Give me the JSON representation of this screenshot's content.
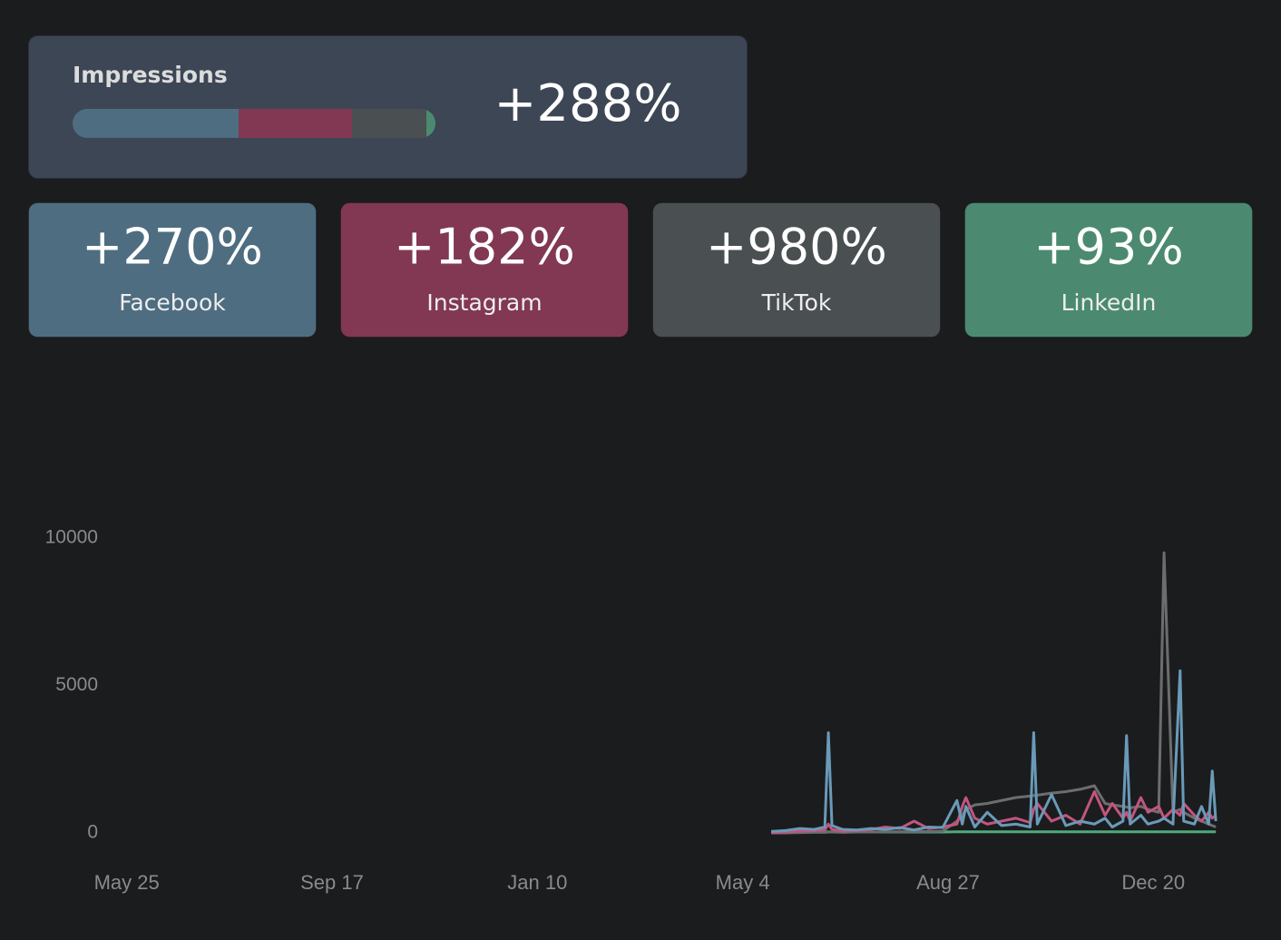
{
  "summary": {
    "title": "Impressions",
    "value": "+288%"
  },
  "cards": [
    {
      "value": "+270%",
      "label": "Facebook",
      "color": "#4e6d80",
      "share": 45.75
    },
    {
      "value": "+182%",
      "label": "Instagram",
      "color": "#823852",
      "share": 31.25
    },
    {
      "value": "+980%",
      "label": "TikTok",
      "color": "#4a4f52",
      "share": 20.5
    },
    {
      "value": "+93%",
      "label": "LinkedIn",
      "color": "#4b8a70",
      "share": 2.5
    }
  ],
  "chart_data": {
    "type": "line",
    "x": [
      361,
      369,
      377,
      385,
      391,
      393,
      395,
      401,
      409,
      417,
      425,
      433,
      441,
      449,
      457,
      465,
      468,
      470,
      475,
      482,
      490,
      498,
      506,
      508,
      510,
      518,
      526,
      534,
      542,
      548,
      552,
      558,
      560,
      562,
      568,
      572,
      578,
      581,
      586,
      590,
      592,
      598,
      602,
      606,
      608,
      610
    ],
    "series": [
      {
        "color": "#4fa97e",
        "values": [
          50,
          40,
          40,
          30,
          30,
          40,
          30,
          30,
          30,
          30,
          30,
          30,
          30,
          30,
          30,
          40,
          40,
          40,
          40,
          40,
          40,
          40,
          40,
          40,
          40,
          40,
          40,
          40,
          40,
          40,
          40,
          40,
          40,
          40,
          40,
          40,
          40,
          40,
          40,
          40,
          40,
          40,
          40,
          40,
          40,
          40
        ]
      },
      {
        "color": "#6b6d6f",
        "values": [
          0,
          0,
          10,
          20,
          20,
          30,
          30,
          20,
          30,
          30,
          40,
          40,
          50,
          50,
          60,
          400,
          600,
          800,
          950,
          1000,
          1100,
          1200,
          1250,
          1270,
          1280,
          1350,
          1400,
          1480,
          1600,
          1000,
          950,
          900,
          880,
          850,
          900,
          800,
          700,
          9500,
          700,
          800,
          700,
          500,
          400,
          300,
          250,
          200
        ]
      },
      {
        "color": "#c2557f",
        "values": [
          0,
          30,
          60,
          80,
          100,
          300,
          120,
          60,
          80,
          120,
          200,
          150,
          400,
          150,
          200,
          300,
          900,
          1200,
          500,
          300,
          400,
          500,
          350,
          800,
          1000,
          400,
          600,
          300,
          1400,
          600,
          1000,
          500,
          700,
          400,
          1200,
          700,
          900,
          500,
          800,
          600,
          1000,
          600,
          400,
          700,
          500,
          600
        ]
      },
      {
        "color": "#6a9ab8",
        "values": [
          50,
          80,
          150,
          120,
          200,
          3400,
          250,
          120,
          100,
          150,
          120,
          180,
          100,
          200,
          180,
          1100,
          300,
          900,
          200,
          700,
          250,
          300,
          200,
          3400,
          300,
          1300,
          250,
          400,
          300,
          500,
          200,
          400,
          3300,
          300,
          600,
          300,
          400,
          500,
          300,
          5500,
          400,
          300,
          900,
          300,
          2100,
          400
        ]
      }
    ],
    "xlim": [
      -10,
      615
    ],
    "xticks": [
      {
        "value": 0,
        "label": "May 25"
      },
      {
        "value": 115,
        "label": "Sep 17"
      },
      {
        "value": 230,
        "label": "Jan 10"
      },
      {
        "value": 345,
        "label": "May 4"
      },
      {
        "value": 460,
        "label": "Aug 27"
      },
      {
        "value": 575,
        "label": "Dec 20"
      }
    ],
    "ylim": [
      0,
      10000
    ],
    "yticks": [
      0,
      5000,
      10000
    ]
  }
}
